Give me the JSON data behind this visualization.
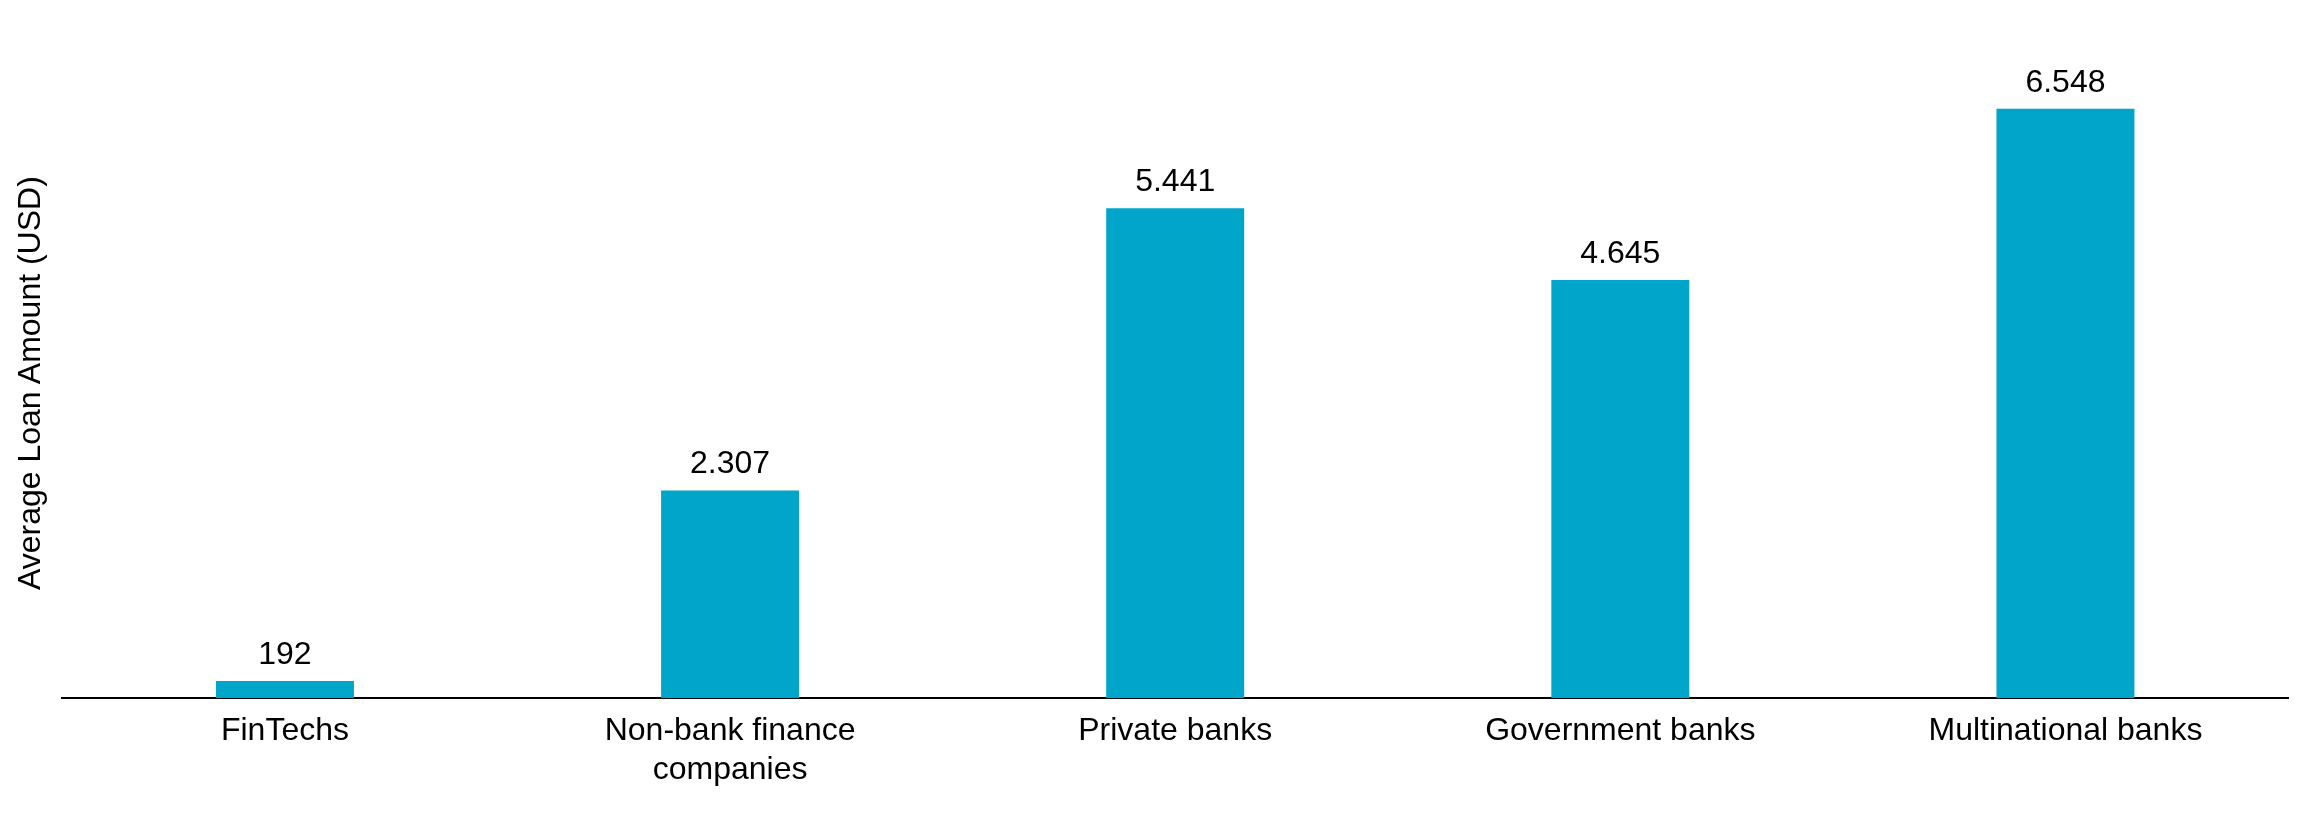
{
  "chart_data": {
    "type": "bar",
    "ylabel": "Average Loan Amount (USD)",
    "categories": [
      "FinTechs",
      "Non-bank finance companies",
      "Private banks",
      "Government banks",
      "Multinational banks"
    ],
    "values": [
      192,
      2307,
      5441,
      4645,
      6548
    ],
    "value_labels": [
      "192",
      "2.307",
      "5.441",
      "4.645",
      "6.548"
    ],
    "color": "#00a5c9",
    "grid": false,
    "legend": false
  }
}
